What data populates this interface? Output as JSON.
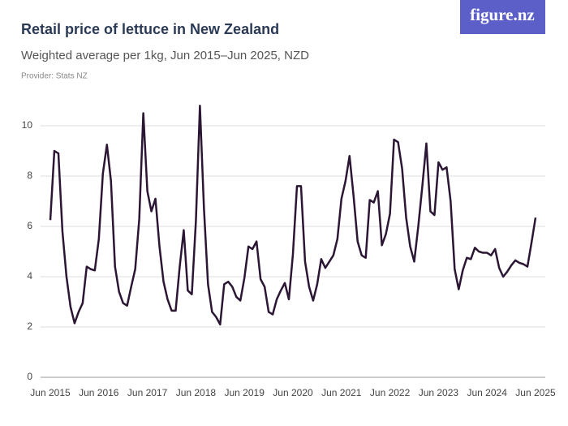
{
  "logo": "figure.nz",
  "chart_data": {
    "type": "line",
    "title": "Retail price of lettuce in New Zealand",
    "subtitle": "Weighted average per 1kg, Jun 2015–Jun 2025, NZD",
    "provider": "Provider: Stats NZ",
    "categories": [
      "Jun 2015",
      null,
      null,
      null,
      null,
      null,
      null,
      null,
      null,
      null,
      null,
      null,
      "Jun 2016",
      null,
      null,
      null,
      null,
      null,
      null,
      null,
      null,
      null,
      null,
      null,
      "Jun 2017",
      null,
      null,
      null,
      null,
      null,
      null,
      null,
      null,
      null,
      null,
      null,
      "Jun 2018",
      null,
      null,
      null,
      null,
      null,
      null,
      null,
      null,
      null,
      null,
      null,
      "Jun 2019",
      null,
      null,
      null,
      null,
      null,
      null,
      null,
      null,
      null,
      null,
      null,
      "Jun 2020",
      null,
      null,
      null,
      null,
      null,
      null,
      null,
      null,
      null,
      null,
      null,
      "Jun 2021",
      null,
      null,
      null,
      null,
      null,
      null,
      null,
      null,
      null,
      null,
      null,
      "Jun 2022",
      null,
      null,
      null,
      null,
      null,
      null,
      null,
      null,
      null,
      null,
      null,
      "Jun 2023",
      null,
      null,
      null,
      null,
      null,
      null,
      null,
      null,
      null,
      null,
      null,
      "Jun 2024",
      null,
      null,
      null,
      null,
      null,
      null,
      null,
      null,
      null,
      null,
      null,
      "Jun 2025"
    ],
    "series": [
      {
        "color": "#2b1634",
        "values": [
          6.25,
          9.0,
          8.9,
          5.8,
          4.0,
          2.8,
          2.15,
          2.6,
          2.95,
          4.4,
          4.3,
          4.25,
          5.5,
          8.1,
          9.25,
          7.8,
          4.4,
          3.4,
          2.95,
          2.85,
          3.6,
          4.3,
          6.3,
          10.5,
          7.4,
          6.6,
          7.1,
          5.2,
          3.8,
          3.1,
          2.65,
          2.65,
          4.4,
          5.85,
          3.45,
          3.3,
          6.2,
          10.8,
          6.7,
          3.7,
          2.6,
          2.4,
          2.1,
          3.7,
          3.8,
          3.6,
          3.2,
          3.05,
          3.95,
          5.2,
          5.1,
          5.4,
          3.9,
          3.6,
          2.6,
          2.5,
          3.1,
          3.45,
          3.75,
          3.1,
          4.9,
          7.6,
          7.6,
          4.6,
          3.6,
          3.05,
          3.7,
          4.7,
          4.35,
          4.6,
          4.85,
          5.5,
          7.1,
          7.8,
          8.8,
          7.2,
          5.4,
          4.85,
          4.75,
          7.05,
          6.95,
          7.4,
          5.25,
          5.7,
          6.5,
          9.45,
          9.35,
          8.3,
          6.35,
          5.2,
          4.6,
          6.0,
          7.6,
          9.3,
          6.6,
          6.45,
          8.55,
          8.25,
          8.35,
          7.0,
          4.3,
          3.5,
          4.25,
          4.75,
          4.7,
          5.15,
          5.0,
          4.95,
          4.95,
          4.85,
          5.1,
          4.35,
          4.0,
          4.2,
          4.45,
          4.65,
          4.55,
          4.5,
          4.4,
          5.35,
          6.35
        ]
      }
    ],
    "ylim": [
      0,
      10.6
    ],
    "yticks": [
      0,
      2,
      4,
      6,
      8,
      10
    ],
    "grid": true
  }
}
